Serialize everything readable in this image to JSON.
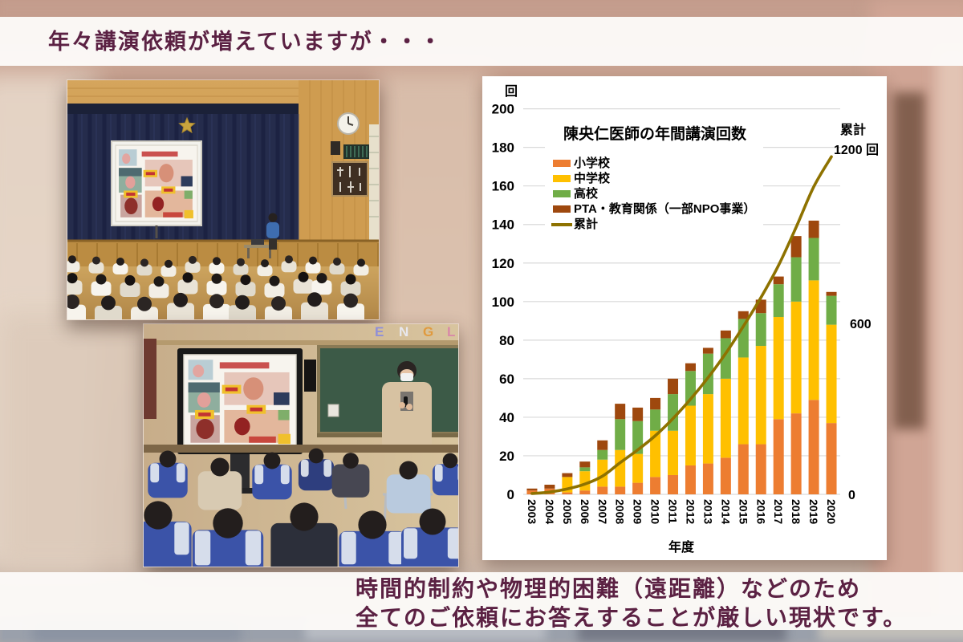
{
  "slide": {
    "title": "年々講演依頼が増えていますが・・・",
    "footer": {
      "line1": "時間的制約や物理的困難（遠距離）などのため",
      "line2": "全てのご依頼にお答えすることが厳しい現状です。"
    },
    "text_color": "#5b2143"
  },
  "classroom_photo": {
    "wall_letters": [
      "E",
      "N",
      "G",
      "L"
    ]
  },
  "chart_data": {
    "type": "bar",
    "stacked": true,
    "title": "陳央仁医師の年間講演回数",
    "xlabel": "年度",
    "unit_label": "回",
    "grid": true,
    "legend_position": "upper-left-inside",
    "left_axis": {
      "min": 0,
      "max": 200,
      "step": 20
    },
    "right_axis": {
      "label": "累計",
      "top_tick_label": "1200 回",
      "mid_tick_label": "600",
      "zero_tick_label": "0",
      "max": 1200
    },
    "categories": [
      "2003",
      "2004",
      "2005",
      "2006",
      "2007",
      "2008",
      "2009",
      "2010",
      "2011",
      "2012",
      "2013",
      "2014",
      "2015",
      "2016",
      "2017",
      "2018",
      "2019",
      "2020"
    ],
    "series": [
      {
        "name": "小学校",
        "color": "#ED7D31",
        "values": [
          2,
          3,
          1,
          2,
          4,
          4,
          6,
          9,
          10,
          15,
          16,
          19,
          26,
          26,
          39,
          42,
          49,
          37
        ]
      },
      {
        "name": "中学校",
        "color": "#FFC000",
        "values": [
          0,
          0,
          8,
          10,
          14,
          19,
          15,
          24,
          23,
          31,
          36,
          41,
          45,
          51,
          53,
          58,
          62,
          51
        ]
      },
      {
        "name": "高校",
        "color": "#70AD47",
        "values": [
          0,
          0,
          0,
          2,
          5,
          16,
          17,
          11,
          19,
          18,
          21,
          21,
          20,
          17,
          17,
          23,
          22,
          15
        ]
      },
      {
        "name": "PTA・教育関係（一部NPO事業）",
        "color": "#9E480E",
        "values": [
          1,
          2,
          2,
          3,
          5,
          8,
          7,
          6,
          8,
          4,
          3,
          4,
          4,
          7,
          4,
          11,
          9,
          2
        ]
      }
    ],
    "line": {
      "name": "累計",
      "color": "#8E7200",
      "axis": "right",
      "values": [
        3,
        8,
        19,
        36,
        64,
        111,
        156,
        206,
        266,
        334,
        410,
        495,
        590,
        691,
        804,
        938,
        1080,
        1185
      ]
    },
    "annual_totals": [
      3,
      5,
      11,
      17,
      28,
      47,
      45,
      50,
      60,
      68,
      76,
      85,
      95,
      101,
      113,
      134,
      142,
      105
    ]
  }
}
